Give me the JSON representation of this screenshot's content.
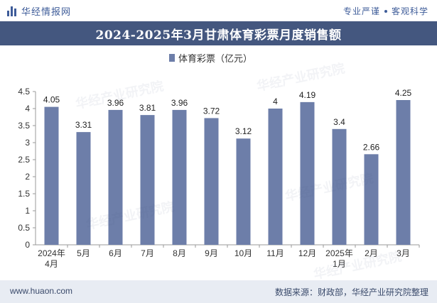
{
  "header": {
    "brand": "华经情报网",
    "tagline_1": "专业严谨",
    "tagline_2": "客观科学"
  },
  "chart_data": {
    "type": "bar",
    "title": "2024-2025年3月甘肃体育彩票月度销售额",
    "legend": [
      "体育彩票（亿元）"
    ],
    "legend_position": "top-center",
    "categories": [
      [
        "2024年",
        "4月"
      ],
      [
        "5月"
      ],
      [
        "6月"
      ],
      [
        "7月"
      ],
      [
        "8月"
      ],
      [
        "9月"
      ],
      [
        "10月"
      ],
      [
        "11月"
      ],
      [
        "12月"
      ],
      [
        "2025年",
        "1月"
      ],
      [
        "2月"
      ],
      [
        "3月"
      ]
    ],
    "series": [
      {
        "name": "体育彩票（亿元）",
        "values": [
          4.05,
          3.31,
          3.96,
          3.81,
          3.96,
          3.72,
          3.12,
          4,
          4.19,
          3.4,
          2.66,
          4.25
        ]
      }
    ],
    "data_labels": [
      "4.05",
      "3.31",
      "3.96",
      "3.81",
      "3.96",
      "3.72",
      "3.12",
      "4",
      "4.19",
      "3.4",
      "2.66",
      "4.25"
    ],
    "ylim": [
      0,
      4.5
    ],
    "yticks": [
      "0",
      "0.5",
      "1",
      "1.5",
      "2",
      "2.5",
      "3",
      "3.5",
      "4",
      "4.5"
    ],
    "grid": false,
    "bar_color": "#6d7ea9"
  },
  "footer": {
    "website": "www.huaon.com",
    "source": "数据来源：财政部，华经产业研究院整理"
  },
  "watermark": "华经产业研究院"
}
